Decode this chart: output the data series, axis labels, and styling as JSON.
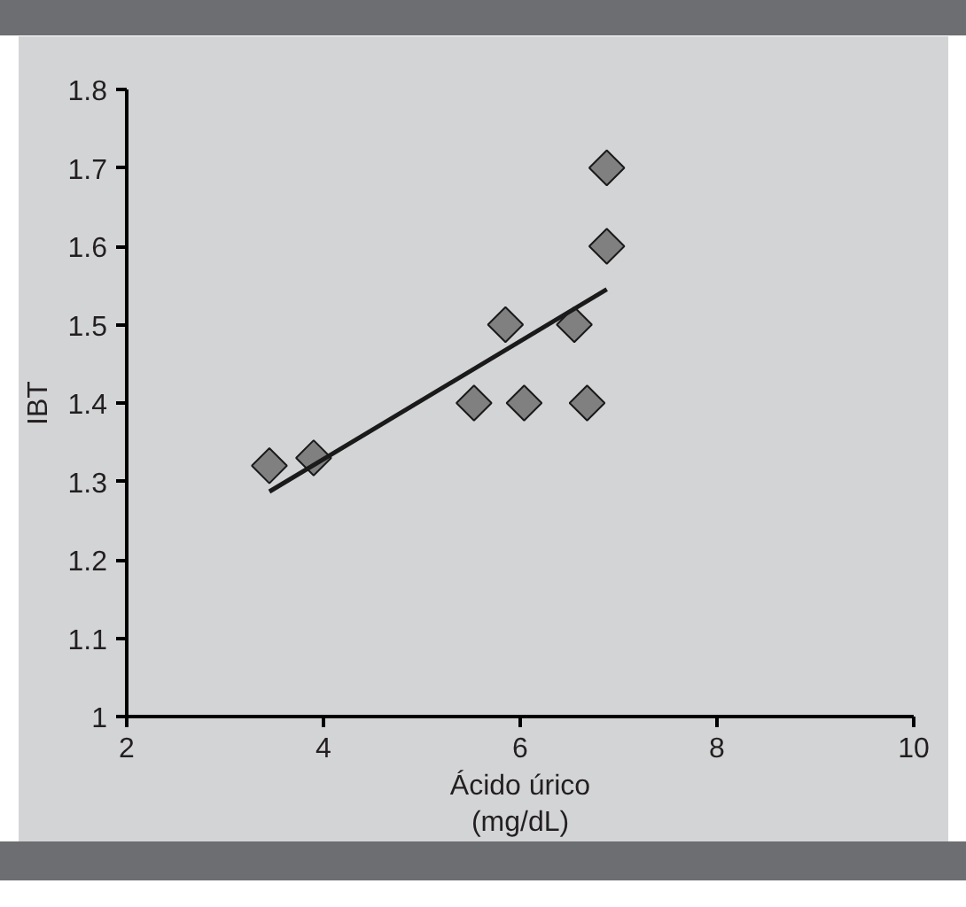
{
  "chart_data": {
    "type": "scatter",
    "xlabel": "Ácido úrico\n(mg/dL)",
    "ylabel": "IBT",
    "xlim": [
      2,
      10
    ],
    "xticks": [
      2,
      4,
      6,
      8,
      10
    ],
    "ylim": [
      1,
      1.8
    ],
    "yticks": [
      1,
      1.1,
      1.2,
      1.3,
      1.4,
      1.5,
      1.6,
      1.7,
      1.8
    ],
    "grid": false,
    "marker": "diamond",
    "series": [
      {
        "color": "#808080",
        "x": [
          3.45,
          3.9,
          5.53,
          5.85,
          6.04,
          6.55,
          6.68,
          6.88,
          6.88
        ],
        "values": [
          1.32,
          1.33,
          1.4,
          1.5,
          1.4,
          1.5,
          1.4,
          1.6,
          1.7
        ]
      },
      {
        "type": "line",
        "marker": "none",
        "color": "#1a1a1a",
        "x": [
          3.45,
          6.88
        ],
        "values": [
          1.287,
          1.545
        ]
      }
    ]
  }
}
